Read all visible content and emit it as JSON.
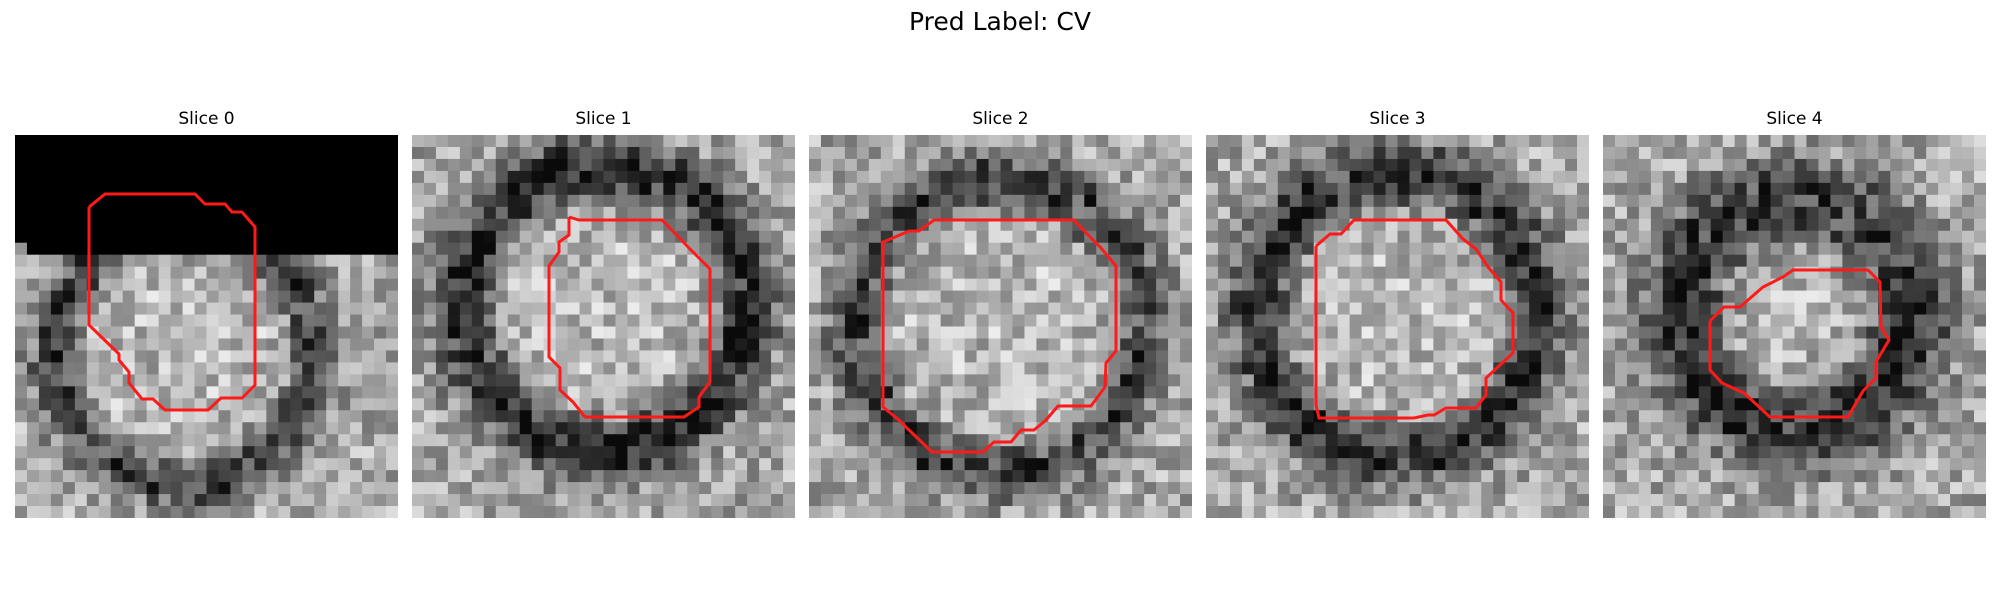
{
  "figure": {
    "title": "Pred Label: CV"
  },
  "panels": [
    {
      "title": "Slice 0"
    },
    {
      "title": "Slice 1"
    },
    {
      "title": "Slice 2"
    },
    {
      "title": "Slice 3"
    },
    {
      "title": "Slice 4"
    }
  ],
  "colors": {
    "contour": "#ff1a1a",
    "background": "#ffffff"
  }
}
